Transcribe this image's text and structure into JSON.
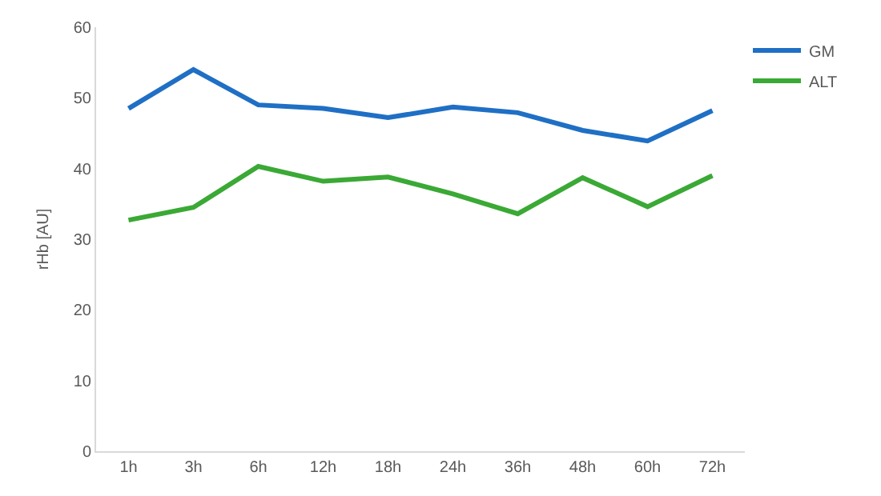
{
  "chart_data": {
    "type": "line",
    "ylabel": "rHb [AU]",
    "categories": [
      "1h",
      "3h",
      "6h",
      "12h",
      "18h",
      "24h",
      "36h",
      "48h",
      "60h",
      "72h"
    ],
    "series": [
      {
        "name": "GM",
        "color": "#1f6fc5",
        "values": [
          48.5,
          54,
          49,
          48.5,
          47.2,
          48.7,
          47.9,
          45.4,
          43.9,
          48.2
        ]
      },
      {
        "name": "ALT",
        "color": "#3aa935",
        "values": [
          32.7,
          34.5,
          40.3,
          38.2,
          38.8,
          36.4,
          33.6,
          38.7,
          34.6,
          39.0
        ]
      }
    ],
    "ylim": [
      0,
      60
    ],
    "yticks": [
      0,
      10,
      20,
      30,
      40,
      50,
      60
    ],
    "grid": false,
    "legend": "top right",
    "marker": "none",
    "line_style": "solid"
  }
}
